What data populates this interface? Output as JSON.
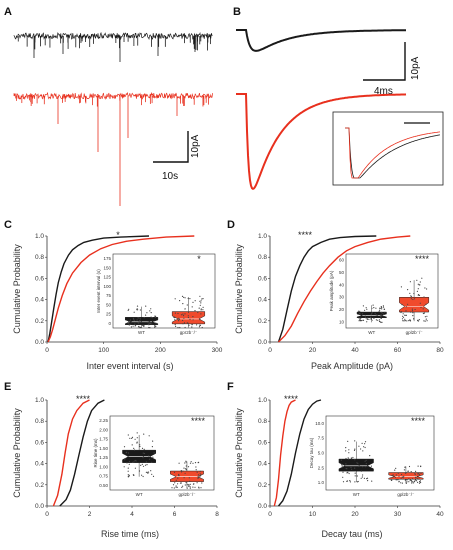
{
  "colors": {
    "wt": "#1a1a1a",
    "ko": "#e8301e",
    "ko_box": "#f04a2c"
  },
  "panels": {
    "a": "A",
    "b": "B",
    "c": "C",
    "d": "D",
    "e": "E",
    "f": "F"
  },
  "scalebars": {
    "a_y": "10pA",
    "a_x": "10s",
    "b_y": "10pA",
    "b_x": "4ms"
  },
  "chart_data": [
    {
      "id": "C",
      "type": "line",
      "xlabel": "Inter event interval (s)",
      "ylabel": "Cumulative Probability",
      "xlim": [
        0,
        300
      ],
      "ylim": [
        0,
        1.0
      ],
      "xticks": [
        "0",
        "100",
        "200",
        "300"
      ],
      "yticks": [
        "0.0",
        "0.2",
        "0.4",
        "0.6",
        "0.8",
        "1.0"
      ],
      "significance": "*",
      "series": [
        {
          "group": "WT",
          "x": [
            2,
            5,
            8,
            12,
            16,
            20,
            25,
            30,
            38,
            45,
            55,
            65,
            80,
            100,
            130,
            180
          ],
          "y": [
            0,
            0.08,
            0.18,
            0.32,
            0.45,
            0.56,
            0.66,
            0.74,
            0.82,
            0.87,
            0.91,
            0.94,
            0.96,
            0.98,
            0.99,
            1.0
          ]
        },
        {
          "group": "KO",
          "x": [
            2,
            6,
            10,
            15,
            20,
            27,
            35,
            45,
            60,
            75,
            95,
            115,
            140,
            170,
            210,
            260
          ],
          "y": [
            0,
            0.05,
            0.12,
            0.22,
            0.32,
            0.44,
            0.55,
            0.65,
            0.75,
            0.82,
            0.88,
            0.92,
            0.95,
            0.97,
            0.99,
            1.0
          ]
        }
      ],
      "inset": {
        "type": "box",
        "ylabel": "Inter event interval (s)",
        "significance": "*",
        "categories": [
          "WT",
          "gpr2b⁻/⁻"
        ],
        "yticks": [
          "0",
          "25",
          "50",
          "75",
          "100",
          "125",
          "150",
          "175"
        ],
        "ylim": [
          0,
          180
        ],
        "boxes": [
          {
            "q1": 8,
            "median": 15,
            "q3": 26,
            "whislo": 1,
            "whishi": 52
          },
          {
            "q1": 10,
            "median": 22,
            "q3": 40,
            "whislo": 1,
            "whishi": 75
          }
        ]
      }
    },
    {
      "id": "D",
      "type": "line",
      "xlabel": "Peak Amplitude (pA)",
      "ylabel": "Cumulative Probability",
      "xlim": [
        0,
        80
      ],
      "ylim": [
        0,
        1.0
      ],
      "xticks": [
        "0",
        "20",
        "40",
        "60",
        "80"
      ],
      "yticks": [
        "0.0",
        "0.2",
        "0.4",
        "0.6",
        "0.8",
        "1.0"
      ],
      "significance": "****",
      "series": [
        {
          "group": "WT",
          "x": [
            4,
            6,
            8,
            10,
            12,
            14,
            16,
            18,
            20,
            24,
            28,
            33,
            40,
            50
          ],
          "y": [
            0,
            0.12,
            0.3,
            0.48,
            0.62,
            0.72,
            0.8,
            0.86,
            0.9,
            0.94,
            0.97,
            0.985,
            0.995,
            1.0
          ]
        },
        {
          "group": "KO",
          "x": [
            4,
            7,
            10,
            13,
            16,
            19,
            22,
            25,
            28,
            32,
            36,
            40,
            46,
            52,
            60,
            66
          ],
          "y": [
            0,
            0.06,
            0.15,
            0.27,
            0.38,
            0.48,
            0.57,
            0.65,
            0.72,
            0.8,
            0.86,
            0.9,
            0.94,
            0.97,
            0.99,
            1.0
          ]
        }
      ],
      "inset": {
        "type": "box",
        "ylabel": "Peak amplitude (pA)",
        "significance": "****",
        "categories": [
          "WT",
          "gpl2b⁻/⁻"
        ],
        "yticks": [
          "10",
          "20",
          "30",
          "40",
          "50",
          "60"
        ],
        "ylim": [
          0,
          65
        ],
        "boxes": [
          {
            "q1": 9,
            "median": 11,
            "q3": 14,
            "whislo": 5,
            "whishi": 20
          },
          {
            "q1": 14,
            "median": 19,
            "q3": 27,
            "whislo": 6,
            "whishi": 42
          }
        ]
      }
    },
    {
      "id": "E",
      "type": "line",
      "xlabel": "Rise time (ms)",
      "ylabel": "Cumulative Probability",
      "xlim": [
        0,
        8
      ],
      "ylim": [
        0,
        1.0
      ],
      "xticks": [
        "0",
        "2",
        "4",
        "6",
        "8"
      ],
      "yticks": [
        "0.0",
        "0.2",
        "0.4",
        "0.6",
        "0.8",
        "1.0"
      ],
      "significance": "****",
      "series": [
        {
          "group": "WT",
          "x": [
            0.6,
            0.9,
            1.1,
            1.3,
            1.5,
            1.7,
            1.9,
            2.1,
            2.4,
            2.7
          ],
          "y": [
            0,
            0.06,
            0.15,
            0.3,
            0.48,
            0.65,
            0.8,
            0.9,
            0.97,
            1.0
          ]
        },
        {
          "group": "KO",
          "x": [
            0.3,
            0.5,
            0.7,
            0.85,
            1.0,
            1.2,
            1.4,
            1.7,
            2.0
          ],
          "y": [
            0,
            0.1,
            0.3,
            0.5,
            0.68,
            0.82,
            0.9,
            0.97,
            1.0
          ]
        }
      ],
      "inset": {
        "type": "box",
        "ylabel": "Rise time (ms)",
        "significance": "****",
        "categories": [
          "WT",
          "gpl2b⁻/⁻"
        ],
        "yticks": [
          "0.50",
          "0.75",
          "1.00",
          "1.25",
          "1.50",
          "1.75",
          "2.00",
          "2.25"
        ],
        "ylim": [
          0.4,
          2.35
        ],
        "boxes": [
          {
            "q1": 1.12,
            "median": 1.28,
            "q3": 1.45,
            "whislo": 0.75,
            "whishi": 1.85
          },
          {
            "q1": 0.62,
            "median": 0.75,
            "q3": 0.9,
            "whislo": 0.45,
            "whishi": 1.15
          }
        ]
      }
    },
    {
      "id": "F",
      "type": "line",
      "xlabel": "Decay tau (ms)",
      "ylabel": "Cumulative Probability",
      "xlim": [
        0,
        40
      ],
      "ylim": [
        0,
        1.0
      ],
      "xticks": [
        "0",
        "10",
        "20",
        "30",
        "40"
      ],
      "yticks": [
        "0.0",
        "0.2",
        "0.4",
        "0.6",
        "0.8",
        "1.0"
      ],
      "significance": "****",
      "series": [
        {
          "group": "WT",
          "x": [
            2,
            3,
            4,
            5,
            6,
            7,
            8,
            9,
            10,
            11,
            12
          ],
          "y": [
            0,
            0.05,
            0.14,
            0.3,
            0.5,
            0.68,
            0.82,
            0.91,
            0.96,
            0.99,
            1.0
          ]
        },
        {
          "group": "KO",
          "x": [
            1,
            1.5,
            2,
            2.5,
            3,
            3.5,
            4,
            4.5,
            5,
            6
          ],
          "y": [
            0,
            0.08,
            0.25,
            0.48,
            0.66,
            0.8,
            0.89,
            0.95,
            0.98,
            1.0
          ]
        }
      ],
      "inset": {
        "type": "box",
        "ylabel": "Decay tau (ms)",
        "significance": "****",
        "categories": [
          "WT",
          "gpl2b⁻/⁻"
        ],
        "yticks": [
          "1.0",
          "2.5",
          "5.0",
          "7.5",
          "10.0"
        ],
        "ylim": [
          0,
          11
        ],
        "boxes": [
          {
            "q1": 2.8,
            "median": 3.6,
            "q3": 4.6,
            "whislo": 1.2,
            "whishi": 7.2
          },
          {
            "q1": 1.6,
            "median": 2.0,
            "q3": 2.6,
            "whislo": 1.0,
            "whishi": 3.5
          }
        ]
      }
    }
  ]
}
